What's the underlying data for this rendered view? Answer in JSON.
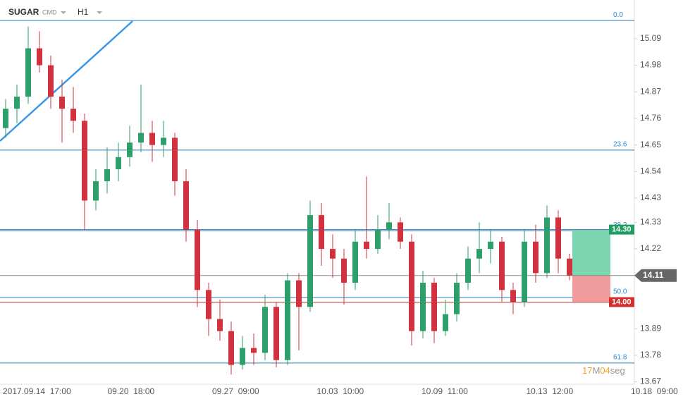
{
  "header": {
    "symbol": "SUGAR",
    "category": "CMD",
    "timeframe": "H1"
  },
  "countdown": {
    "minutes": "17",
    "minutes_unit": "M",
    "seconds": "04",
    "seconds_unit": "seg"
  },
  "chart_data": {
    "type": "candlestick",
    "x_labels": [
      "2017.09.14  17:00",
      "09.20  18:00",
      "09.27  09:00",
      "10.03  10:00",
      "10.09  11:00",
      "10.13  12:00",
      "10.18  09:00"
    ],
    "ylim": [
      13.66,
      15.25
    ],
    "yticks": [
      15.09,
      14.98,
      14.87,
      14.76,
      14.65,
      14.54,
      14.43,
      14.33,
      14.22,
      13.89,
      13.78,
      13.67
    ],
    "grid": false,
    "up_color": "#2e9e6a",
    "down_color": "#d2323f",
    "open": [
      14.72,
      14.8,
      14.85,
      15.05,
      14.98,
      14.85,
      14.8,
      14.75,
      14.42,
      14.5,
      14.55,
      14.6,
      14.66,
      14.7,
      14.65,
      14.68,
      14.5,
      14.3,
      14.05,
      13.93,
      13.88,
      13.74,
      13.81,
      13.79,
      13.98,
      13.76,
      14.09,
      13.98,
      14.36,
      14.22,
      14.18,
      14.08,
      14.25,
      14.22,
      14.3,
      14.33,
      14.25,
      13.88,
      14.08,
      13.88,
      13.95,
      14.08,
      14.18,
      14.22,
      14.25,
      14.05,
      14.0,
      14.25,
      14.12,
      14.35,
      14.18
    ],
    "high": [
      14.84,
      14.9,
      15.14,
      15.12,
      15.02,
      14.92,
      14.89,
      14.78,
      14.55,
      14.64,
      14.66,
      14.73,
      14.9,
      14.75,
      14.75,
      14.7,
      14.55,
      14.34,
      14.08,
      14.01,
      13.92,
      13.86,
      13.87,
      14.03,
      14.0,
      14.12,
      14.12,
      14.42,
      14.41,
      14.28,
      14.22,
      14.3,
      14.52,
      14.36,
      14.41,
      14.35,
      14.28,
      14.13,
      14.1,
      14.01,
      14.12,
      14.23,
      14.33,
      14.3,
      14.27,
      14.08,
      14.3,
      14.32,
      14.4,
      14.38,
      14.2
    ],
    "low": [
      14.68,
      14.74,
      14.82,
      14.95,
      14.8,
      14.66,
      14.7,
      14.3,
      14.38,
      14.45,
      14.5,
      14.56,
      14.62,
      14.58,
      14.6,
      14.44,
      14.25,
      13.98,
      13.86,
      13.84,
      13.7,
      13.72,
      13.74,
      13.76,
      13.73,
      13.74,
      13.8,
      13.96,
      14.15,
      14.1,
      13.99,
      14.05,
      14.18,
      14.2,
      14.26,
      14.22,
      13.82,
      13.85,
      13.83,
      13.86,
      13.92,
      14.05,
      14.12,
      14.16,
      14.0,
      13.95,
      13.98,
      14.08,
      14.1,
      14.12,
      14.09
    ],
    "close": [
      14.8,
      14.85,
      15.05,
      14.98,
      14.85,
      14.8,
      14.75,
      14.42,
      14.5,
      14.55,
      14.6,
      14.66,
      14.7,
      14.65,
      14.68,
      14.5,
      14.3,
      14.05,
      13.93,
      13.88,
      13.74,
      13.81,
      13.79,
      13.98,
      13.76,
      14.09,
      13.98,
      14.36,
      14.22,
      14.18,
      14.08,
      14.25,
      14.22,
      14.3,
      14.33,
      14.25,
      13.88,
      14.08,
      13.88,
      13.95,
      14.08,
      14.18,
      14.22,
      14.25,
      14.05,
      14.0,
      14.25,
      14.12,
      14.35,
      14.18,
      14.11
    ],
    "fib_levels": [
      {
        "label": "0.0",
        "price": 15.165
      },
      {
        "label": "23.6",
        "price": 14.629
      },
      {
        "label": "38.2",
        "price": 14.295
      },
      {
        "label": "50.0",
        "price": 14.019
      },
      {
        "label": "61.8",
        "price": 13.748
      }
    ],
    "current_price": {
      "value": 14.11,
      "label": "14.11"
    },
    "take_profit": {
      "value": 14.3,
      "label": "14.30"
    },
    "stop_loss": {
      "value": 14,
      "label": "14.00"
    }
  }
}
